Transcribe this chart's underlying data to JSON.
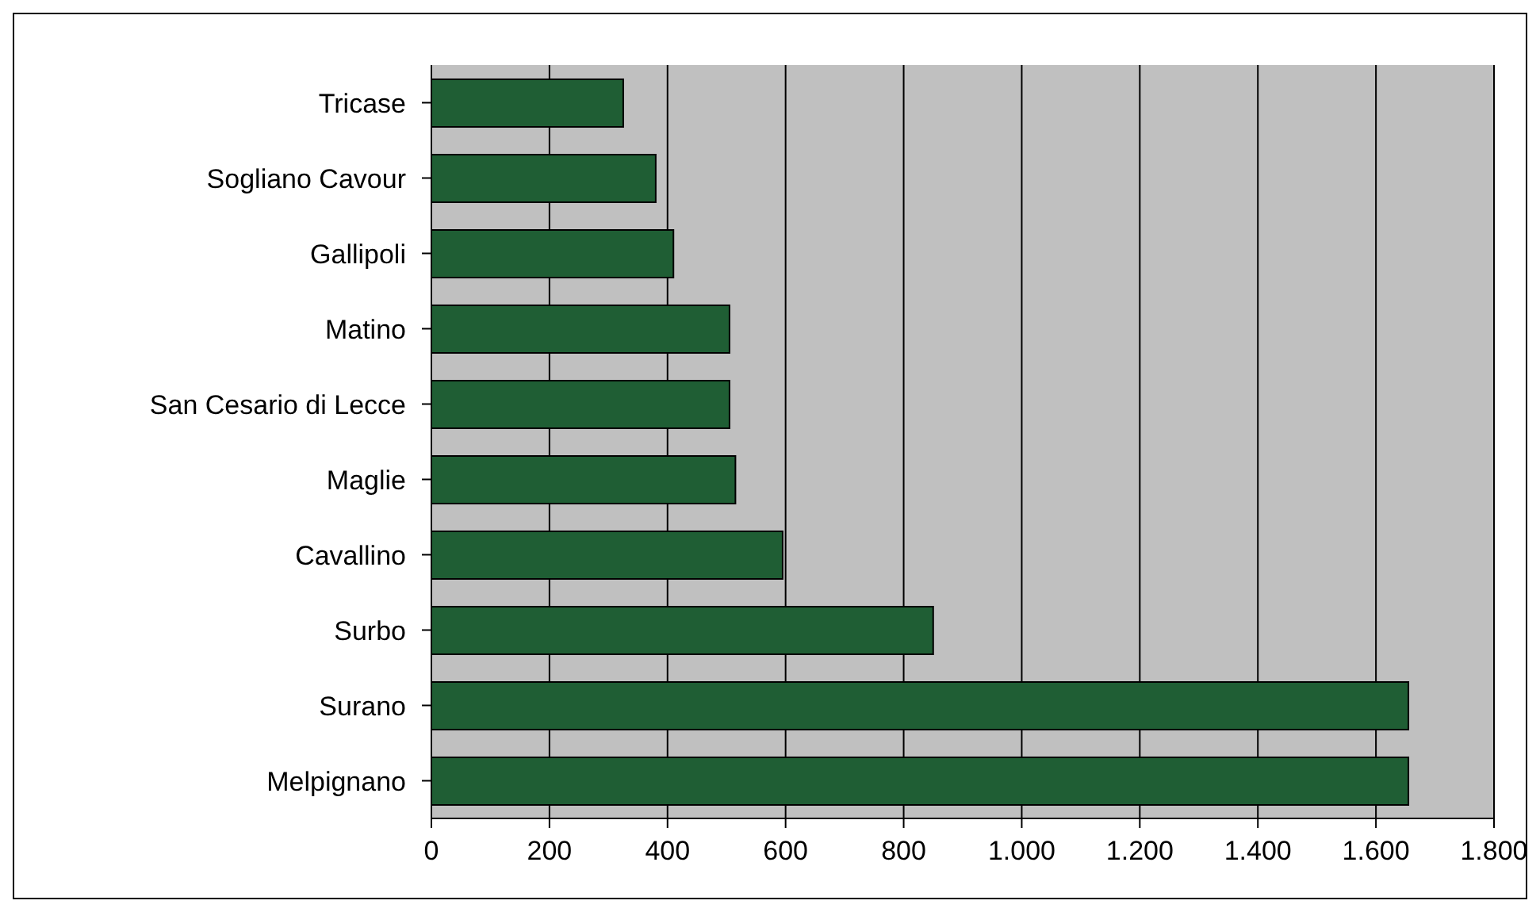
{
  "chart_data": {
    "type": "bar",
    "orientation": "horizontal",
    "categories": [
      "Tricase",
      "Sogliano Cavour",
      "Gallipoli",
      "Matino",
      "San Cesario di Lecce",
      "Maglie",
      "Cavallino",
      "Surbo",
      "Surano",
      "Melpignano"
    ],
    "values": [
      325,
      380,
      410,
      505,
      505,
      515,
      595,
      850,
      1655,
      1655
    ],
    "color": "#1f5e34",
    "xlim": [
      0,
      1800
    ],
    "xticks": [
      0,
      200,
      400,
      600,
      800,
      {
        "value": 1000,
        "label": "1.000"
      },
      {
        "value": 1200,
        "label": "1.200"
      },
      {
        "value": 1400,
        "label": "1.400"
      },
      {
        "value": 1600,
        "label": "1.600"
      },
      {
        "value": 1800,
        "label": "1.800"
      }
    ],
    "grid": "x",
    "legend": false
  }
}
